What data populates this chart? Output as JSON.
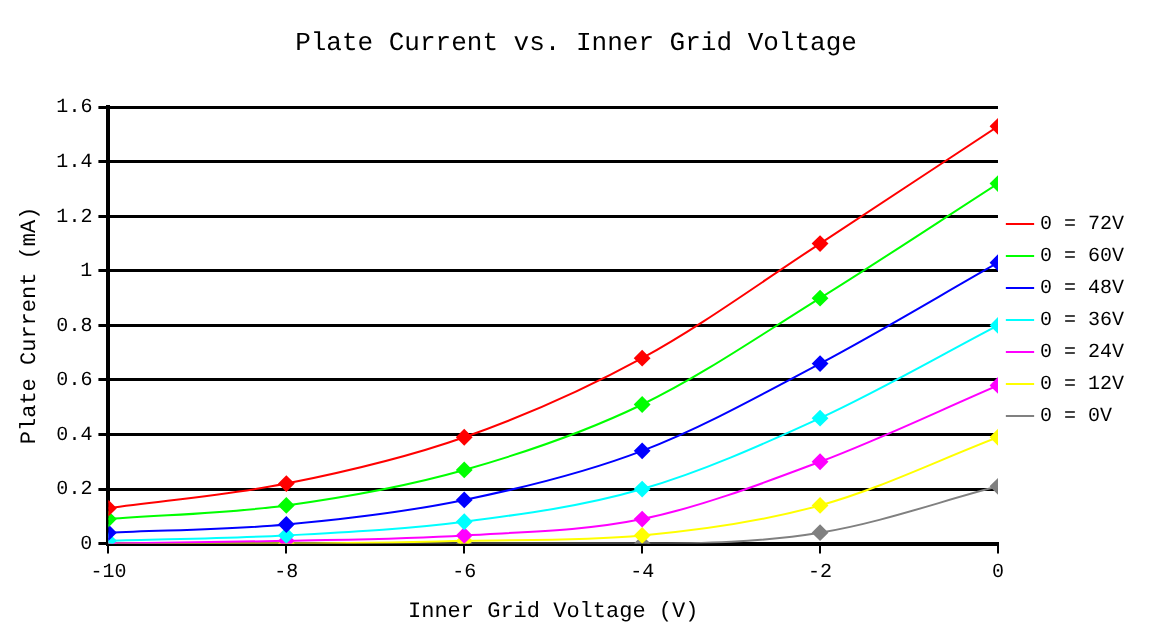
{
  "chart_data": {
    "type": "line",
    "title": "Plate Current vs. Inner Grid Voltage",
    "xlabel": "Inner Grid Voltage (V)",
    "ylabel": "Plate Current (mA)",
    "x": [
      -10,
      -8,
      -6,
      -4,
      -2,
      0
    ],
    "xlim": [
      -10,
      0
    ],
    "xticks": [
      -10,
      -8,
      -6,
      -4,
      -2,
      0
    ],
    "ylim": [
      0,
      1.6
    ],
    "yticks": [
      0,
      0.2,
      0.4,
      0.6,
      0.8,
      1,
      1.2,
      1.4,
      1.6
    ],
    "grid": "y",
    "legend": "right",
    "marker": "diamond",
    "line_style": "solid",
    "series": [
      {
        "name": "0 = 72V",
        "color": "#ff0000",
        "values": [
          0.13,
          0.22,
          0.39,
          0.68,
          1.1,
          1.53
        ]
      },
      {
        "name": "0 = 60V",
        "color": "#00ff00",
        "values": [
          0.09,
          0.14,
          0.27,
          0.51,
          0.9,
          1.32
        ]
      },
      {
        "name": "0 = 48V",
        "color": "#0000ff",
        "values": [
          0.04,
          0.07,
          0.16,
          0.34,
          0.66,
          1.03
        ]
      },
      {
        "name": "0 = 36V",
        "color": "#00ffff",
        "values": [
          0.01,
          0.03,
          0.08,
          0.2,
          0.46,
          0.8
        ]
      },
      {
        "name": "0 = 24V",
        "color": "#ff00ff",
        "values": [
          0,
          0.01,
          0.03,
          0.09,
          0.3,
          0.58
        ]
      },
      {
        "name": "0 = 12V",
        "color": "#ffff00",
        "values": [
          0,
          0,
          0.01,
          0.03,
          0.14,
          0.39
        ]
      },
      {
        "name": "0 = 0V",
        "color": "#808080",
        "values": [
          0,
          0,
          0,
          0,
          0.04,
          0.21
        ]
      }
    ]
  }
}
